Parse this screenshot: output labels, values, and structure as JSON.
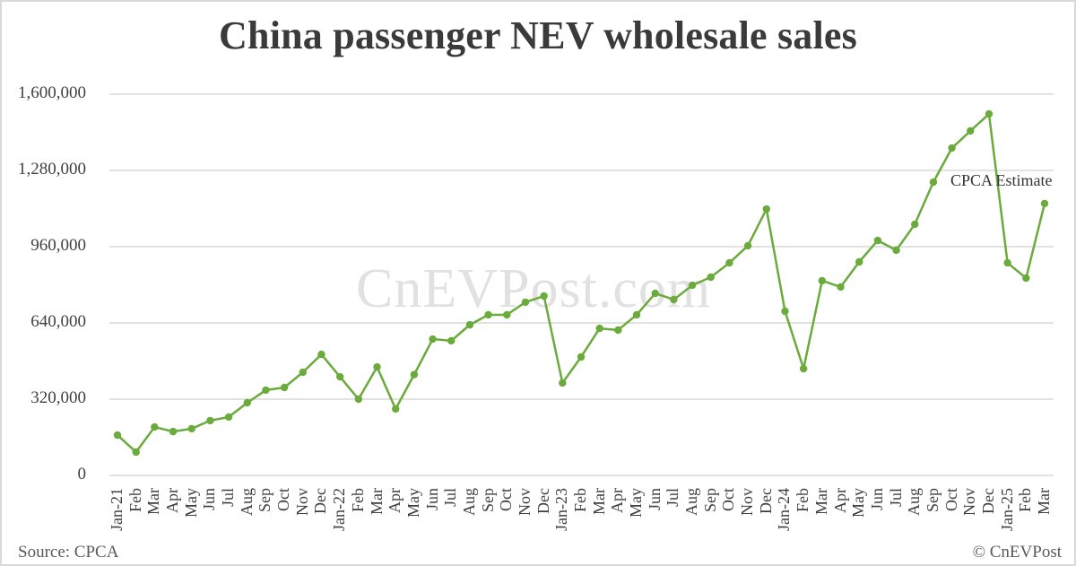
{
  "chart_data": {
    "type": "line",
    "title": "China passenger NEV wholesale sales",
    "xlabel": "",
    "ylabel": "",
    "ylim": [
      0,
      1600000
    ],
    "yticks": [
      0,
      320000,
      640000,
      960000,
      1280000,
      1600000
    ],
    "ytick_labels": [
      "0",
      "320,000",
      "640,000",
      "960,000",
      "1,280,000",
      "1,600,000"
    ],
    "grid": true,
    "legend": null,
    "categories": [
      "Jan-21",
      "Feb",
      "Mar",
      "Apr",
      "May",
      "Jun",
      "Jul",
      "Aug",
      "Sep",
      "Oct",
      "Nov",
      "Dec",
      "Jan-22",
      "Feb",
      "Mar",
      "Apr",
      "May",
      "Jun",
      "Jul",
      "Aug",
      "Sep",
      "Oct",
      "Nov",
      "Dec",
      "Jan-23",
      "Feb",
      "Mar",
      "Apr",
      "May",
      "Jun",
      "Jul",
      "Aug",
      "Sep",
      "Oct",
      "Nov",
      "Dec",
      "Jan-24",
      "Feb",
      "Mar",
      "Apr",
      "May",
      "Jun",
      "Jul",
      "Aug",
      "Sep",
      "Oct",
      "Nov",
      "Dec",
      "Jan-25",
      "Feb",
      "Mar"
    ],
    "series": [
      {
        "name": "NEV wholesale sales",
        "color": "#6aab3c",
        "values": [
          169000,
          98000,
          203000,
          184000,
          196000,
          230000,
          245000,
          305000,
          358000,
          369000,
          433000,
          508000,
          414000,
          320000,
          455000,
          279000,
          423000,
          572000,
          565000,
          632000,
          674000,
          674000,
          727000,
          753000,
          388000,
          497000,
          617000,
          610000,
          674000,
          764000,
          738000,
          798000,
          832000,
          892000,
          964000,
          1118000,
          689000,
          448000,
          817000,
          791000,
          896000,
          986000,
          945000,
          1054000,
          1231000,
          1374000,
          1446000,
          1517000,
          892000,
          828000,
          1141000
        ]
      }
    ],
    "annotations": [
      {
        "text": "CPCA Estimate",
        "target": "Mar"
      }
    ]
  },
  "labels": {
    "title": "China passenger NEV wholesale sales",
    "watermark": "CnEVPost.com",
    "source": "Source: CPCA",
    "copyright": "© CnEVPost",
    "annotation": "CPCA Estimate"
  }
}
